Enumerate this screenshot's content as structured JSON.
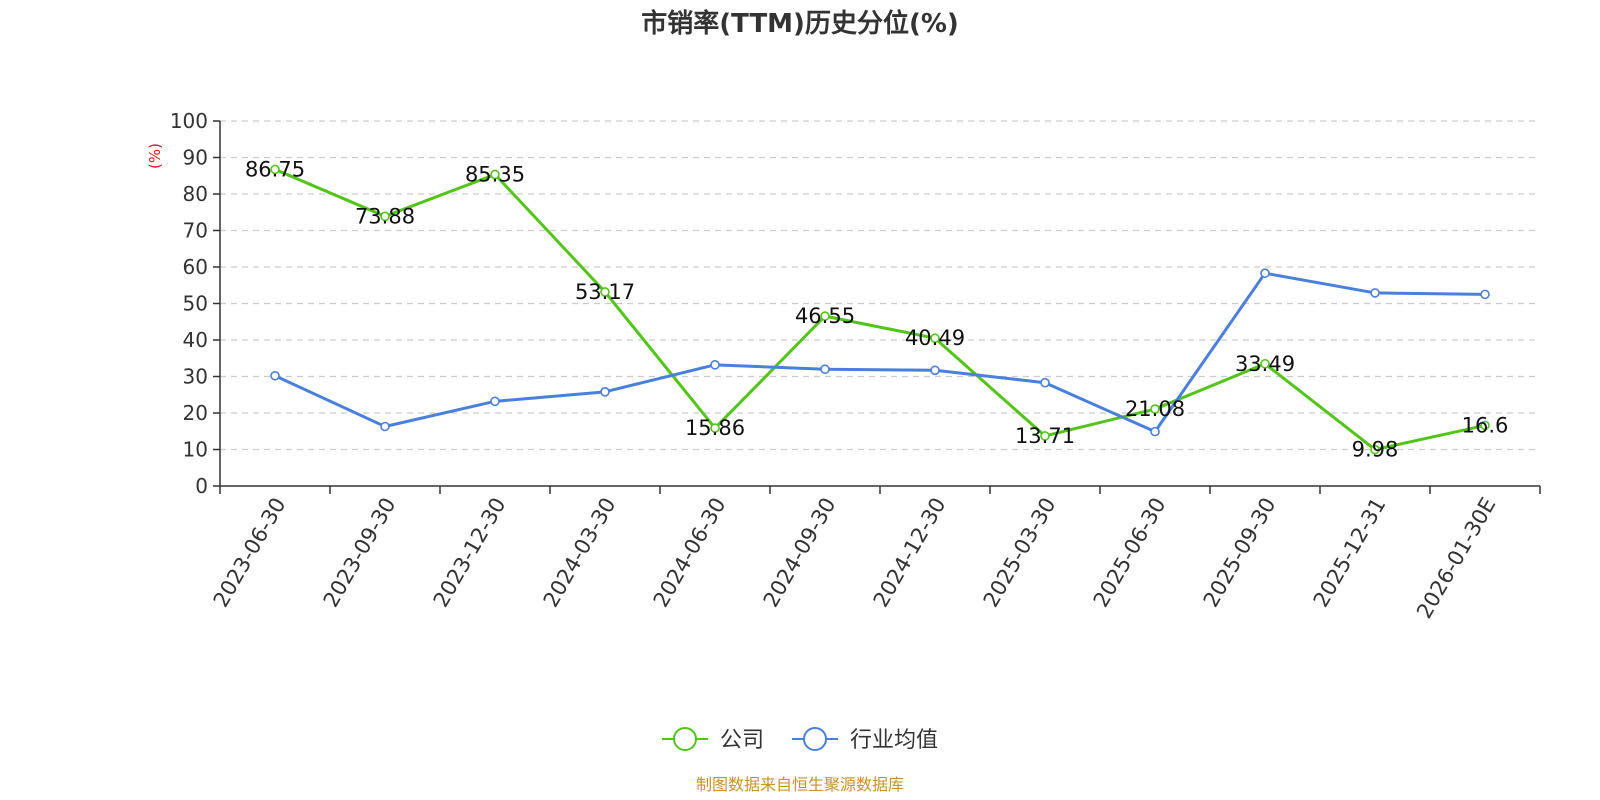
{
  "chart_data": {
    "type": "line",
    "title": "市销率(TTM)历史分位(%)",
    "ylabel": "(%)",
    "ylim": [
      0,
      100
    ],
    "yticks": [
      0,
      10,
      20,
      30,
      40,
      50,
      60,
      70,
      80,
      90,
      100
    ],
    "categories": [
      "2023-06-30",
      "2023-09-30",
      "2023-12-30",
      "2024-03-30",
      "2024-06-30",
      "2024-09-30",
      "2024-12-30",
      "2025-03-30",
      "2025-06-30",
      "2025-09-30",
      "2025-12-31",
      "2026-01-30E"
    ],
    "grid": true,
    "legend_position": "bottom-center",
    "series": [
      {
        "name": "公司",
        "color": "#52c41a",
        "values": [
          86.75,
          73.88,
          85.35,
          53.17,
          15.86,
          46.55,
          40.49,
          13.71,
          21.08,
          33.49,
          9.98,
          16.6
        ],
        "labels": [
          "86.75",
          "73.88",
          "85.35",
          "53.17",
          "15.86",
          "46.55",
          "40.49",
          "13.71",
          "21.08",
          "33.49",
          "9.98",
          "16.6"
        ]
      },
      {
        "name": "行业均值",
        "color": "#4a7fdc",
        "values": [
          30.2,
          16.3,
          23.2,
          25.8,
          33.2,
          32.0,
          31.7,
          28.3,
          14.9,
          58.3,
          52.9,
          52.5
        ]
      }
    ],
    "source": "制图数据来自恒生聚源数据库"
  }
}
